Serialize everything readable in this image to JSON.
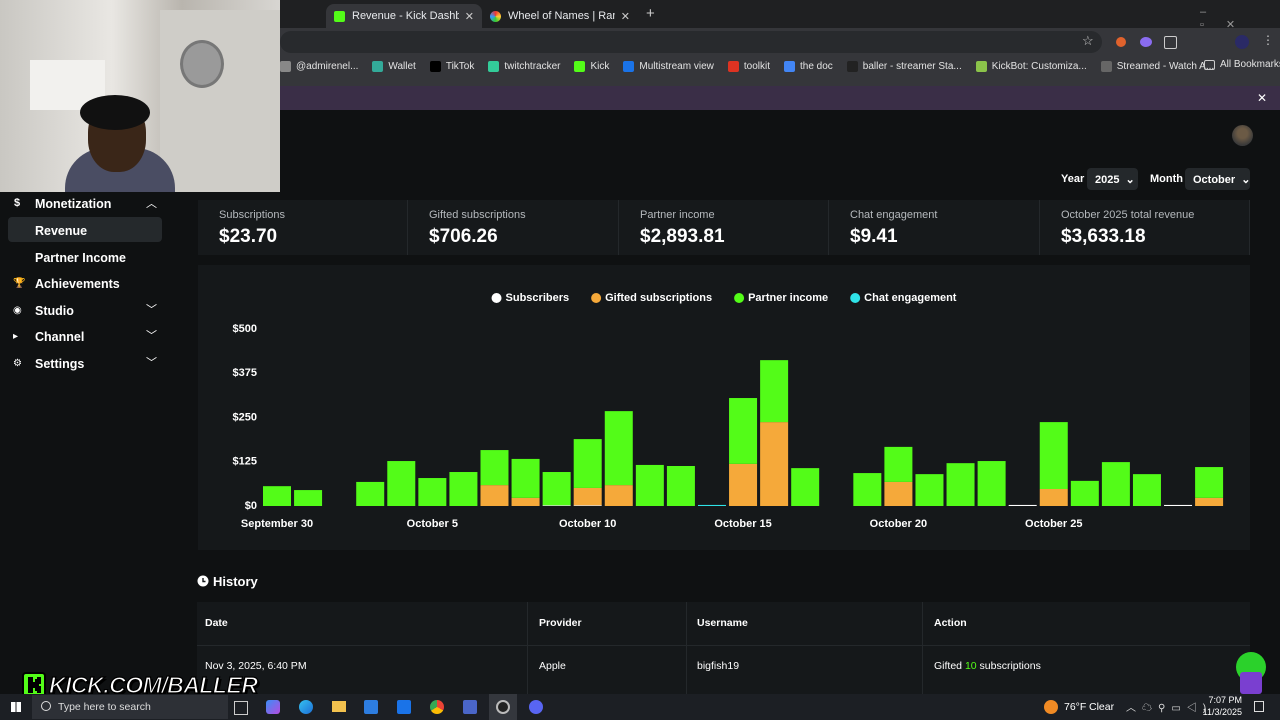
{
  "browser": {
    "tabs": [
      "Revenue - Kick Dashboard",
      "Wheel of Names | Random nam"
    ],
    "bookmarks": [
      "@admirenel...",
      "Wallet",
      "TikTok",
      "twitchtracker",
      "Kick",
      "Multistream view",
      "toolkit",
      "the doc",
      "baller - streamer Sta...",
      "KickBot: Customiza...",
      "Streamed - Watch A..."
    ],
    "all_bookmarks": "All Bookmarks"
  },
  "sidebar": {
    "section": "Monetization",
    "subitems": [
      "Revenue",
      "Partner Income"
    ],
    "items": [
      "Achievements",
      "Studio",
      "Channel",
      "Settings"
    ]
  },
  "filters": {
    "year_label": "Year",
    "year": "2025",
    "month_label": "Month",
    "month": "October"
  },
  "stats": [
    {
      "label": "Subscriptions",
      "value": "$23.70"
    },
    {
      "label": "Gifted subscriptions",
      "value": "$706.26"
    },
    {
      "label": "Partner income",
      "value": "$2,893.81"
    },
    {
      "label": "Chat engagement",
      "value": "$9.41"
    },
    {
      "label": "October 2025 total revenue",
      "value": "$3,633.18"
    }
  ],
  "chart_data": {
    "type": "bar",
    "stacked": true,
    "legend": "top",
    "grid": false,
    "categories": [
      "September 30",
      null,
      null,
      null,
      null,
      "October 5",
      null,
      null,
      null,
      null,
      "October 10",
      null,
      null,
      null,
      null,
      "October 15",
      null,
      null,
      null,
      null,
      "October 20",
      null,
      null,
      null,
      null,
      "October 25",
      null,
      null,
      null,
      null,
      null
    ],
    "ylim": [
      0,
      500
    ],
    "yticks": [
      {
        "value": 0,
        "label": "$0"
      },
      {
        "value": 125,
        "label": "$125"
      },
      {
        "value": 250,
        "label": "$250"
      },
      {
        "value": 375,
        "label": "$375"
      },
      {
        "value": 500,
        "label": "$500"
      }
    ],
    "series": [
      {
        "name": "Subscribers",
        "color": "#ffffff",
        "values": [
          0,
          0,
          0,
          0,
          0,
          0,
          0,
          0,
          0,
          2,
          2,
          0,
          0,
          0,
          0,
          0,
          0,
          0,
          0,
          0,
          0,
          0,
          0,
          0,
          3,
          0,
          0,
          0,
          0,
          3,
          0
        ]
      },
      {
        "name": "Gifted subscriptions",
        "color": "#f5a93a",
        "values": [
          0,
          0,
          0,
          0,
          0,
          0,
          0,
          59,
          23,
          0,
          49,
          59,
          0,
          0,
          0,
          119,
          237,
          0,
          0,
          0,
          68,
          0,
          0,
          0,
          0,
          48,
          0,
          0,
          0,
          0,
          23
        ]
      },
      {
        "name": "Partner income",
        "color": "#53fc18",
        "values": [
          56,
          45,
          0,
          68,
          127,
          79,
          96,
          99,
          110,
          94,
          138,
          209,
          116,
          113,
          0,
          186,
          175,
          107,
          0,
          93,
          99,
          90,
          121,
          127,
          0,
          189,
          71,
          124,
          90,
          0,
          87
        ]
      },
      {
        "name": "Chat engagement",
        "color": "#2fe3e8",
        "values": [
          0,
          0,
          0,
          0,
          0,
          0,
          0,
          0,
          0,
          0,
          0,
          0,
          0,
          0,
          3,
          0,
          0,
          0,
          0,
          0,
          0,
          0,
          0,
          0,
          0,
          0,
          0,
          0,
          0,
          0,
          0
        ]
      }
    ]
  },
  "history": {
    "title": "History",
    "columns": [
      "Date",
      "Provider",
      "Username",
      "Action"
    ],
    "rows": [
      {
        "date": "Nov 3, 2025, 6:40 PM",
        "provider": "Apple",
        "username": "bigfish19",
        "action": {
          "verb": "Gifted",
          "count": "10",
          "noun": "subscriptions"
        }
      }
    ]
  },
  "overlay": {
    "text": "KICK.COM/BALLER"
  },
  "taskbar": {
    "search": "Type here to search",
    "temperature": "76°F",
    "weather": "Clear",
    "time": "7:07 PM",
    "date": "11/3/2025"
  }
}
